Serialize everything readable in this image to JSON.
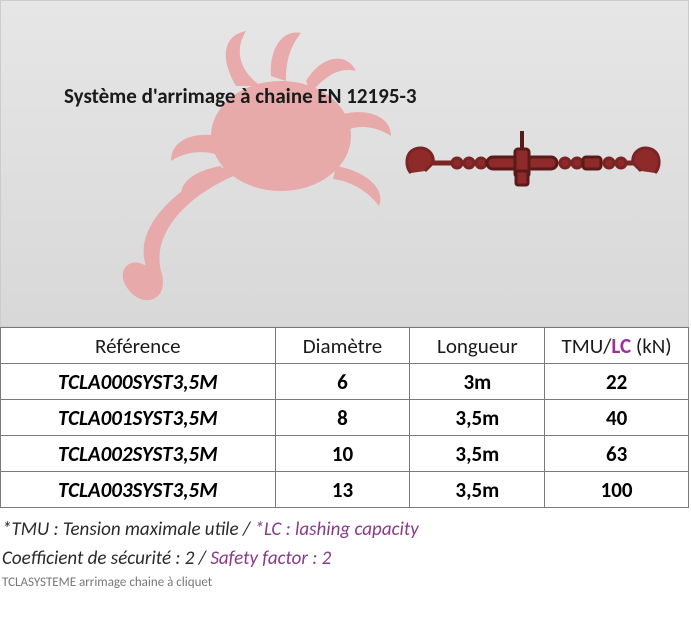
{
  "hero": {
    "title": "Système d'arrimage à chaine EN 12195-3",
    "bg_gradient_top": "#e6e6e6",
    "bg_gradient_bottom": "#d8d8d8",
    "gecko_color": "#e9a4a4",
    "binder_color": "#8e2a2a",
    "hook_color": "#7a2424"
  },
  "table": {
    "headers": {
      "reference": "Référence",
      "diameter": "Diamètre",
      "length": "Longueur",
      "tmu_prefix": "TMU/",
      "tmu_lc": "LC",
      "tmu_suffix": " (kN)"
    },
    "rows": [
      {
        "reference": "TCLA000SYST3,5M",
        "diameter": "6",
        "length": "3m",
        "tmu": "22"
      },
      {
        "reference": "TCLA001SYST3,5M",
        "diameter": "8",
        "length": "3,5m",
        "tmu": "40"
      },
      {
        "reference": "TCLA002SYST3,5M",
        "diameter": "10",
        "length": "3,5m",
        "tmu": "63"
      },
      {
        "reference": "TCLA003SYST3,5M",
        "diameter": "13",
        "length": "3,5m",
        "tmu": "100"
      }
    ]
  },
  "footnotes": {
    "line1_fr": "*TMU : Tension maximale utile / ",
    "line1_en": "*LC : lashing capacity",
    "line2_fr": "Coefficient de sécurité : 2 / ",
    "line2_en": "Safety factor : 2"
  },
  "caption": "TCLASYSTEME arrimage chaine à cliquet"
}
